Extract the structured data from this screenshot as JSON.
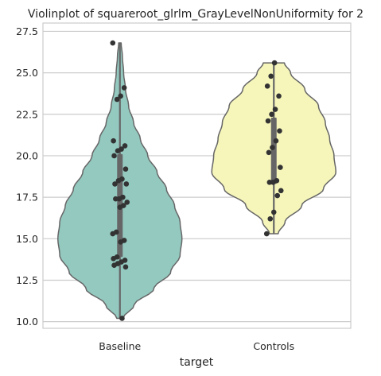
{
  "chart_data": {
    "type": "violin",
    "title": "Violinplot of squareroot_glrlm_GrayLevelNonUniformity for 2",
    "xlabel": "target",
    "ylabel": "",
    "categories": [
      "Baseline",
      "Controls"
    ],
    "ylim": [
      9.6,
      28.0
    ],
    "yticks": [
      10.0,
      12.5,
      15.0,
      17.5,
      20.0,
      22.5,
      25.0,
      27.5
    ],
    "ytick_labels": [
      "10.0",
      "12.5",
      "15.0",
      "17.5",
      "20.0",
      "22.5",
      "25.0",
      "27.5"
    ],
    "grid": true,
    "colors": {
      "Baseline": "#94c9c0",
      "Controls": "#f6f6bb",
      "outline": "#666666",
      "points": "#333333",
      "grid": "#cccccc",
      "box": "#666666"
    },
    "series": [
      {
        "name": "Baseline",
        "min": 10.2,
        "max": 26.8,
        "q1": 13.9,
        "median": 17.1,
        "q3": 20.1,
        "points": [
          26.8,
          24.1,
          23.6,
          23.4,
          20.9,
          20.6,
          20.4,
          20.3,
          20.0,
          19.2,
          18.6,
          18.5,
          18.3,
          18.3,
          17.5,
          17.4,
          17.4,
          17.2,
          17.0,
          16.9,
          15.4,
          15.3,
          14.9,
          14.8,
          13.9,
          13.8,
          13.7,
          13.6,
          13.5,
          13.4,
          13.3,
          10.2
        ],
        "density": [
          [
            10.2,
            0.05
          ],
          [
            11.0,
            0.23
          ],
          [
            12.0,
            0.55
          ],
          [
            13.0,
            0.82
          ],
          [
            14.0,
            0.97
          ],
          [
            15.0,
            1.0
          ],
          [
            16.0,
            0.97
          ],
          [
            17.0,
            0.88
          ],
          [
            18.0,
            0.75
          ],
          [
            19.0,
            0.6
          ],
          [
            20.0,
            0.45
          ],
          [
            21.0,
            0.33
          ],
          [
            22.0,
            0.22
          ],
          [
            23.0,
            0.14
          ],
          [
            24.0,
            0.09
          ],
          [
            25.0,
            0.06
          ],
          [
            26.0,
            0.04
          ],
          [
            26.8,
            0.02
          ]
        ]
      },
      {
        "name": "Controls",
        "min": 15.3,
        "max": 25.6,
        "q1": 18.3,
        "median": 20.3,
        "q3": 22.3,
        "points": [
          25.6,
          24.8,
          24.2,
          23.6,
          22.8,
          22.5,
          22.1,
          21.5,
          20.9,
          20.5,
          20.2,
          19.3,
          18.5,
          18.4,
          18.4,
          17.9,
          17.6,
          16.6,
          16.2,
          15.3
        ],
        "density": [
          [
            15.3,
            0.07
          ],
          [
            16.0,
            0.18
          ],
          [
            17.0,
            0.45
          ],
          [
            18.0,
            0.8
          ],
          [
            19.0,
            1.0
          ],
          [
            20.0,
            0.97
          ],
          [
            21.0,
            0.9
          ],
          [
            22.0,
            0.83
          ],
          [
            23.0,
            0.72
          ],
          [
            24.0,
            0.5
          ],
          [
            25.0,
            0.27
          ],
          [
            25.6,
            0.17
          ]
        ]
      }
    ]
  }
}
